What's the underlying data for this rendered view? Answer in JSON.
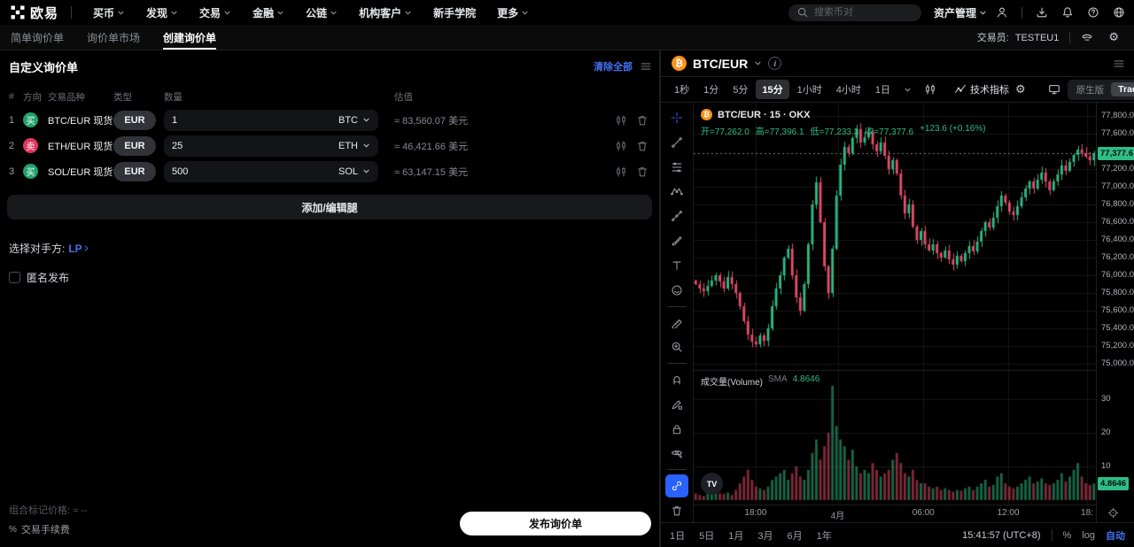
{
  "topnav": {
    "brand": "欧易",
    "menu": [
      {
        "label": "买币",
        "chevron": true
      },
      {
        "label": "发现",
        "chevron": true
      },
      {
        "label": "交易",
        "chevron": true
      },
      {
        "label": "金融",
        "chevron": true
      },
      {
        "label": "公链",
        "chevron": true
      },
      {
        "label": "机构客户",
        "chevron": true
      },
      {
        "label": "新手学院",
        "chevron": false
      },
      {
        "label": "更多",
        "chevron": true
      }
    ],
    "search_placeholder": "搜索币对",
    "assets_label": "资产管理",
    "icons": [
      "user",
      "divider",
      "download",
      "bell",
      "help",
      "globe"
    ]
  },
  "subnav": {
    "tabs": [
      {
        "label": "简单询价单",
        "active": false
      },
      {
        "label": "询价单市场",
        "active": false
      },
      {
        "label": "创建询价单",
        "active": true
      }
    ],
    "trader_label": "交易员:",
    "trader_value": "TESTEU1"
  },
  "rfq": {
    "title": "自定义询价单",
    "clear_all": "清除全部",
    "columns": [
      "#",
      "方向",
      "交易品种",
      "类型",
      "数量",
      "估值"
    ],
    "legs": [
      {
        "index": "1",
        "side": "买",
        "side_type": "buy",
        "pair": "BTC/EUR 现货",
        "type": "EUR",
        "amount": "1",
        "unit": "BTC",
        "value": "≈ 83,560.07 美元"
      },
      {
        "index": "2",
        "side": "卖",
        "side_type": "sell",
        "pair": "ETH/EUR 现货",
        "type": "EUR",
        "amount": "25",
        "unit": "ETH",
        "value": "≈ 46,421.66 美元"
      },
      {
        "index": "3",
        "side": "买",
        "side_type": "buy",
        "pair": "SOL/EUR 现货",
        "type": "EUR",
        "amount": "500",
        "unit": "SOL",
        "value": "≈ 63,147.15 美元"
      }
    ],
    "add_edit_legs": "添加/编辑腿",
    "counterparty_label": "选择对手方:",
    "counterparty_value": "LP",
    "anonymous_label": "匿名发布",
    "mark_price_label": "组合标记价格",
    "mark_price_value": "≈ --",
    "fee_pct": "%",
    "fee_label": "交易手续费",
    "submit": "发布询价单"
  },
  "chart": {
    "pair": "BTC/EUR",
    "timeframes": [
      "1秒",
      "1分",
      "5分",
      "15分",
      "1小时",
      "4小时",
      "1日"
    ],
    "active_timeframe": "15分",
    "indicators_label": "技术指标",
    "native_label": "原生版",
    "tv_label": "TradingView",
    "volume_label": "成交量(Volume)",
    "volume_sma_label": "SMA",
    "volume_sma_value": "4.8646",
    "tv_watermark": "TV",
    "coin_glyph": "₿",
    "range_buttons": [
      "1日",
      "5日",
      "1月",
      "3月",
      "6月",
      "1年"
    ],
    "clock": "15:41:57 (UTC+8)",
    "percent_label": "%",
    "log_label": "log",
    "auto_label": "自动",
    "tools": [
      "crosshair",
      "trend-line",
      "fib-retracement",
      "xabcd-pattern",
      "forecast",
      "brush",
      "text-tool",
      "emoji",
      "divider",
      "ruler",
      "zoom-in",
      "divider",
      "magnet",
      "draw-pencil",
      "lock",
      "eye-hide",
      "divider",
      "link",
      "trash"
    ],
    "active_tool": "link",
    "blue_tool": "crosshair"
  },
  "chart_data": {
    "type": "candlestick",
    "title": "BTC/EUR · 15 · OKX",
    "interval": "15",
    "exchange": "OKX",
    "ohlc_legend": [
      "开=77,262.0",
      "高=77,396.1",
      "低=77,233.3",
      "收=77,377.6",
      "+123.6 (+0.16%)"
    ],
    "open": 77262.0,
    "high": 77396.1,
    "low": 77233.3,
    "close": 77377.6,
    "change": "+123.6 (+0.16%)",
    "last_price": 77377.6,
    "last_price_label": "77,377.6",
    "price_range": [
      75000,
      77800
    ],
    "price_axis": [
      {
        "label": "77,800.0",
        "value": 77800
      },
      {
        "label": "77,600.0",
        "value": 77600
      },
      {
        "label": "77,200.0",
        "value": 77200
      },
      {
        "label": "77,000.0",
        "value": 77000
      },
      {
        "label": "76,800.0",
        "value": 76800
      },
      {
        "label": "76,600.0",
        "value": 76600
      },
      {
        "label": "76,400.0",
        "value": 76400
      },
      {
        "label": "76,200.0",
        "value": 76200
      },
      {
        "label": "76,000.0",
        "value": 76000
      },
      {
        "label": "75,800.0",
        "value": 75800
      },
      {
        "label": "75,600.0",
        "value": 75600
      },
      {
        "label": "75,400.0",
        "value": 75400
      },
      {
        "label": "75,200.0",
        "value": 75200
      },
      {
        "label": "75,000.0",
        "value": 75000
      }
    ],
    "volume_axis": [
      {
        "label": "30",
        "value": 30
      },
      {
        "label": "20",
        "value": 20
      },
      {
        "label": "10",
        "value": 10
      }
    ],
    "volume_sma": 4.8646,
    "volume_badge_label": "4.8646",
    "time_labels": [
      {
        "label": "18:00",
        "pos": 0.154
      },
      {
        "label": "4月",
        "pos": 0.358
      },
      {
        "label": "06:00",
        "pos": 0.571
      },
      {
        "label": "12:00",
        "pos": 0.782
      },
      {
        "label": "18:",
        "pos": 0.978
      }
    ],
    "closes": [
      75900,
      75850,
      75820,
      75880,
      75940,
      76000,
      75930,
      75850,
      75980,
      75900,
      75800,
      75650,
      75480,
      75330,
      75250,
      75220,
      75320,
      75260,
      75400,
      75650,
      75850,
      76000,
      76200,
      76300,
      76000,
      75750,
      75600,
      75900,
      76350,
      76800,
      77050,
      76600,
      76100,
      75800,
      76300,
      76900,
      77250,
      77450,
      77380,
      77550,
      77650,
      77500,
      77560,
      77620,
      77480,
      77400,
      77500,
      77350,
      77200,
      77300,
      77150,
      76900,
      76700,
      76800,
      76550,
      76400,
      76500,
      76350,
      76280,
      76350,
      76250,
      76200,
      76280,
      76180,
      76120,
      76220,
      76160,
      76250,
      76330,
      76270,
      76380,
      76500,
      76600,
      76540,
      76650,
      76780,
      76900,
      76820,
      76720,
      76680,
      76780,
      76880,
      76980,
      77060,
      76980,
      77080,
      77160,
      77060,
      76960,
      77060,
      77140,
      77240,
      77180,
      77280,
      77360,
      77420,
      77380,
      77340,
      77300,
      77377.6
    ],
    "volumes": [
      2,
      1.5,
      1.2,
      2,
      2.5,
      3,
      2,
      1.8,
      2.2,
      1.5,
      3,
      5,
      7,
      9,
      6,
      4,
      3.5,
      3,
      4,
      6,
      7,
      8,
      9,
      6,
      8,
      10,
      7,
      6,
      9,
      14,
      18,
      12,
      16,
      20,
      34,
      22,
      18,
      16,
      12,
      15,
      10,
      8,
      9,
      8,
      11,
      9,
      7,
      8,
      9,
      12,
      14,
      11,
      8,
      7,
      9,
      6,
      5,
      5,
      4,
      3.5,
      4,
      3,
      3.5,
      3,
      2.5,
      3,
      2.8,
      3.5,
      4,
      3,
      4,
      5,
      6,
      4,
      4.5,
      7,
      8,
      5,
      4,
      3.5,
      4,
      5,
      6,
      7,
      5,
      5.5,
      6.5,
      5,
      4.5,
      5,
      6,
      8,
      5.5,
      7,
      9,
      11,
      7,
      5,
      4.5,
      4.9
    ],
    "colors": {
      "up": "#2ebd85",
      "down": "#ea4d6a",
      "grid": "#161719",
      "last_price_line": "#9aa0a8"
    }
  }
}
